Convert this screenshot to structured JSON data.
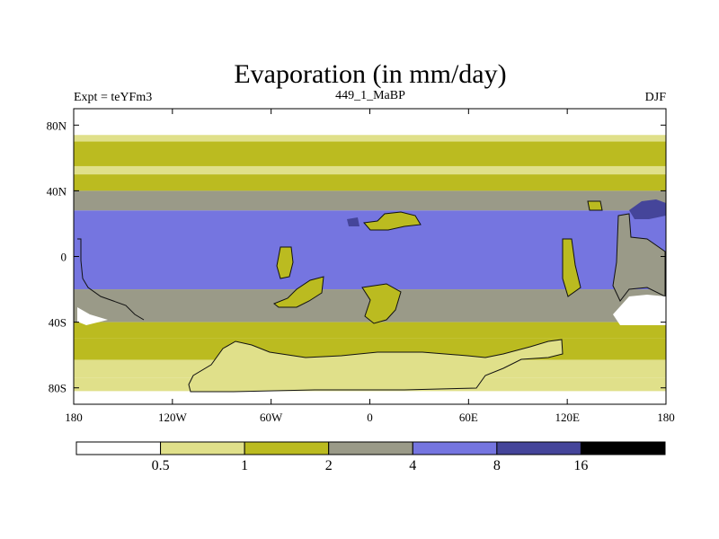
{
  "title": "Evaporation (in mm/day)",
  "subtitle_left": "Expt = teYFm3",
  "subtitle_center": "449_1_MaBP",
  "subtitle_right": "DJF",
  "chart_data": {
    "type": "heatmap",
    "title": "Evaporation (in mm/day)",
    "units": "mm/day",
    "experiment": "teYFm3",
    "period": "449_1_MaBP",
    "season": "DJF",
    "x_axis": {
      "range": [
        -180,
        180
      ],
      "ticks": [
        -180,
        -120,
        -60,
        0,
        60,
        120,
        180
      ],
      "tick_labels": [
        "180",
        "120W",
        "60W",
        "0",
        "60E",
        "120E",
        "180"
      ]
    },
    "y_axis": {
      "range": [
        -90,
        90
      ],
      "ticks": [
        80,
        40,
        0,
        -40,
        -80
      ],
      "tick_labels": [
        "80N",
        "40N",
        "0",
        "40S",
        "80S"
      ]
    },
    "levels": [
      0.5,
      1,
      2,
      4,
      8,
      16
    ],
    "level_labels": [
      "0.5",
      "1",
      "2",
      "4",
      "8",
      "16"
    ],
    "colors": [
      "#ffffff",
      "#e0e08a",
      "#bbbb20",
      "#9a9a88",
      "#7575e0",
      "#45459a",
      "#000000"
    ],
    "zonal_bands": [
      {
        "lat_range": [
          70,
          74
        ],
        "bin": 1
      },
      {
        "lat_range": [
          55,
          70
        ],
        "bin": 2
      },
      {
        "lat_range": [
          50,
          55
        ],
        "bin": 1
      },
      {
        "lat_range": [
          40,
          50
        ],
        "bin": 2
      },
      {
        "lat_range": [
          28,
          40
        ],
        "bin": 3
      },
      {
        "lat_range": [
          -20,
          28
        ],
        "bin": 4
      },
      {
        "lat_range": [
          -40,
          -20
        ],
        "bin": 3
      },
      {
        "lat_range": [
          -50,
          -40
        ],
        "bin": 2
      },
      {
        "lat_range": [
          -63,
          -50
        ],
        "bin": 2
      },
      {
        "lat_range": [
          -74,
          -63
        ],
        "bin": 1
      },
      {
        "lat_range": [
          -82,
          -74
        ],
        "bin": 1
      }
    ]
  }
}
